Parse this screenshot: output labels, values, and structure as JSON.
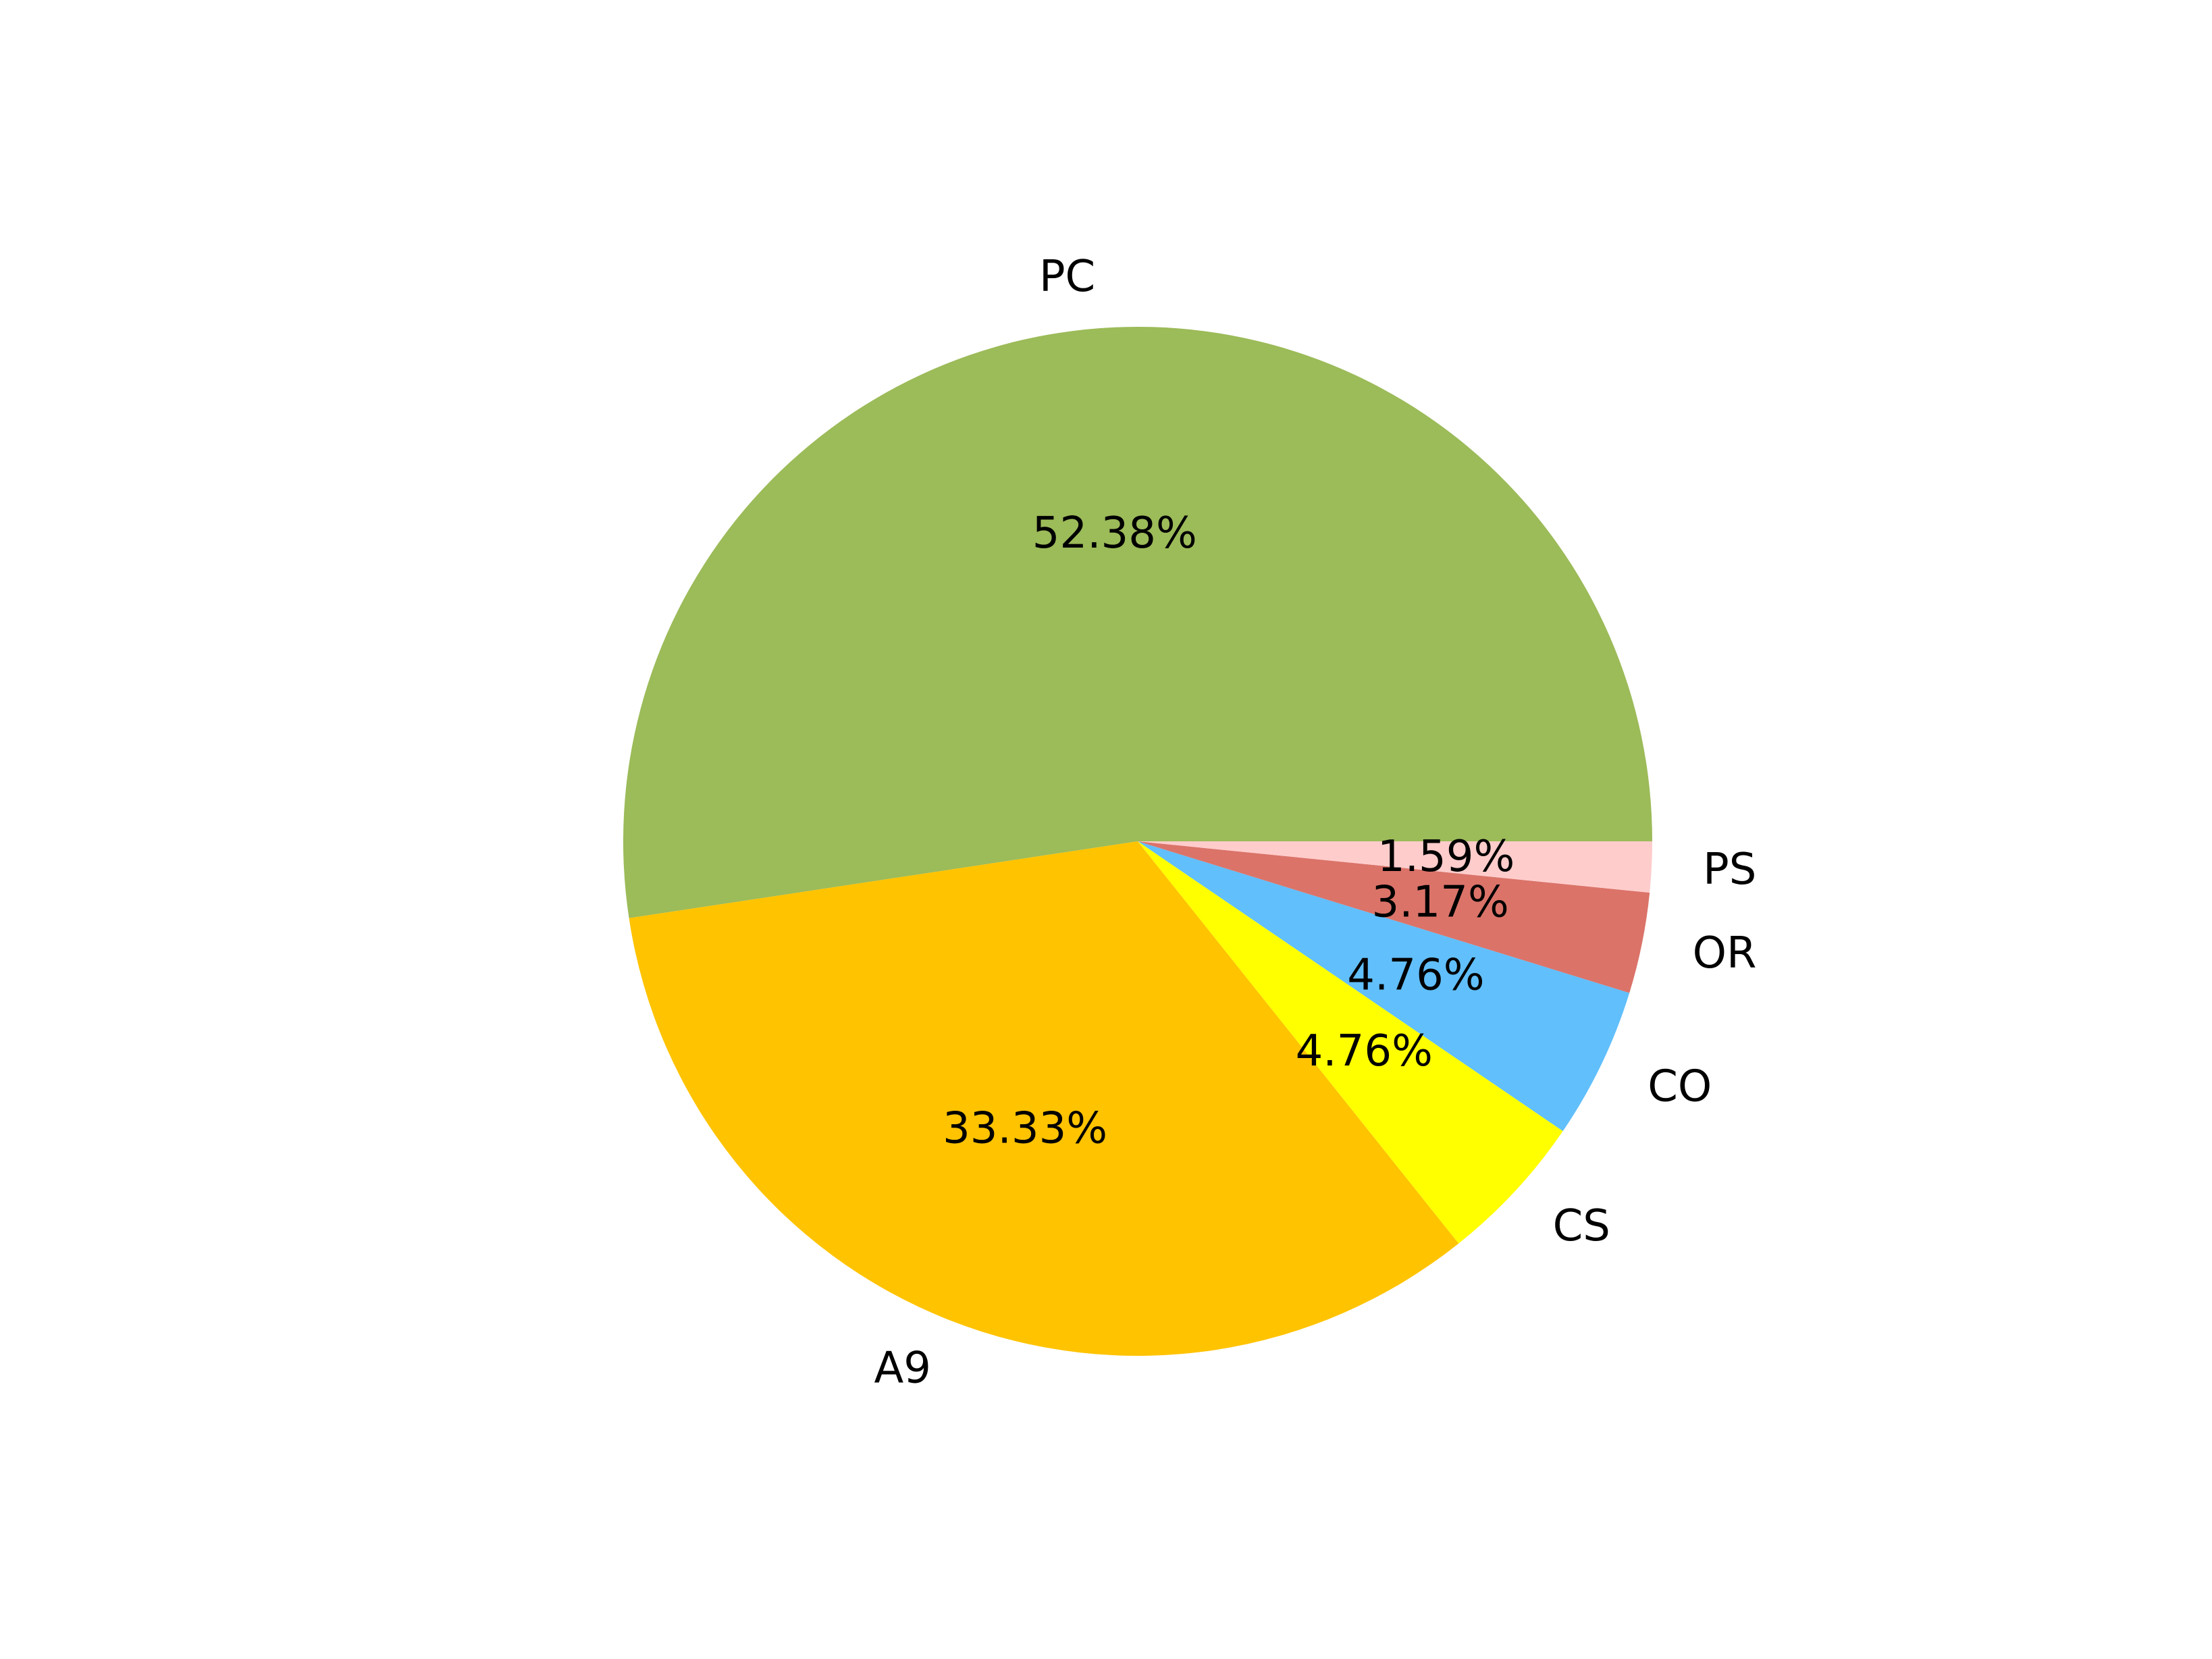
{
  "chart_data": {
    "type": "pie",
    "title": "",
    "start_angle_deg": 0,
    "direction": "counterclockwise-from-east-going-up",
    "slices": [
      {
        "label": "PC",
        "percent_label": "52.38%",
        "value": 52.38,
        "color": "#9cbb59"
      },
      {
        "label": "A9",
        "percent_label": "33.33%",
        "value": 33.33,
        "color": "#ffc300"
      },
      {
        "label": "CS",
        "percent_label": "4.76%",
        "value": 4.76,
        "color": "#ffff00"
      },
      {
        "label": "CO",
        "percent_label": "4.76%",
        "value": 4.76,
        "color": "#61bffb"
      },
      {
        "label": "OR",
        "percent_label": "3.17%",
        "value": 3.17,
        "color": "#db7369"
      },
      {
        "label": "PS",
        "percent_label": "1.59%",
        "value": 1.59,
        "color": "#fecccb"
      }
    ]
  }
}
